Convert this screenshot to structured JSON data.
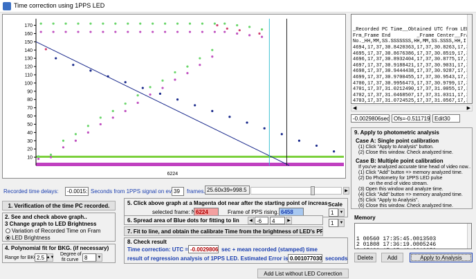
{
  "window": {
    "title": "Time correction using 1PPS LED"
  },
  "chart_data": {
    "type": "scatter",
    "yticks": [
      10,
      20,
      30,
      40,
      50,
      60,
      70,
      80,
      90,
      100,
      110,
      120,
      130,
      140,
      150,
      160,
      170
    ],
    "ylim": [
      0,
      178
    ],
    "xlabel_center": "6224",
    "series": [
      {
        "name": "",
        "color": "#6bd66b",
        "points": [
          [
            1,
            11
          ],
          [
            6,
            13
          ],
          [
            11,
            30
          ],
          [
            16,
            38
          ],
          [
            21,
            48
          ],
          [
            26,
            58
          ],
          [
            31,
            66
          ],
          [
            36,
            75
          ],
          [
            41,
            85
          ],
          [
            46,
            95
          ],
          [
            51,
            103
          ],
          [
            56,
            113
          ],
          [
            61,
            120
          ],
          [
            66,
            130
          ],
          [
            71,
            140
          ],
          [
            2,
            172
          ],
          [
            7,
            172
          ],
          [
            12,
            172
          ],
          [
            17,
            172
          ],
          [
            22,
            172
          ],
          [
            27,
            172
          ],
          [
            32,
            172
          ],
          [
            37,
            172
          ],
          [
            42,
            172
          ],
          [
            47,
            172
          ],
          [
            52,
            172
          ],
          [
            57,
            172
          ],
          [
            62,
            172
          ],
          [
            67,
            172
          ],
          [
            72,
            172
          ],
          [
            76,
            172
          ],
          [
            81,
            170
          ],
          [
            86,
            168
          ],
          [
            91,
            165
          ]
        ]
      },
      {
        "name": "",
        "color": "#c050c0",
        "points": [
          [
            1,
            8
          ],
          [
            6,
            10
          ],
          [
            11,
            22
          ],
          [
            16,
            30
          ],
          [
            21,
            40
          ],
          [
            26,
            50
          ],
          [
            31,
            58
          ],
          [
            36,
            66
          ],
          [
            41,
            76
          ],
          [
            46,
            86
          ],
          [
            51,
            94
          ],
          [
            56,
            104
          ],
          [
            61,
            112
          ],
          [
            66,
            122
          ],
          [
            71,
            132
          ],
          [
            2,
            162
          ],
          [
            7,
            162
          ],
          [
            12,
            162
          ],
          [
            17,
            162
          ],
          [
            22,
            162
          ],
          [
            27,
            162
          ],
          [
            32,
            162
          ],
          [
            37,
            162
          ],
          [
            42,
            162
          ],
          [
            47,
            162
          ],
          [
            52,
            162
          ],
          [
            57,
            162
          ],
          [
            62,
            162
          ],
          [
            67,
            162
          ],
          [
            72,
            162
          ],
          [
            76,
            162
          ],
          [
            81,
            160
          ],
          [
            86,
            158
          ],
          [
            91,
            156
          ]
        ]
      },
      {
        "name": "",
        "color": "#1a2a8c",
        "points": [
          [
            8,
            130
          ],
          [
            15,
            122
          ],
          [
            22,
            115
          ],
          [
            29,
            108
          ],
          [
            36,
            101
          ],
          [
            43,
            94
          ],
          [
            50,
            87
          ],
          [
            57,
            80
          ],
          [
            64,
            73
          ],
          [
            71,
            66
          ],
          [
            78,
            59
          ],
          [
            85,
            52
          ],
          [
            92,
            45
          ],
          [
            99,
            38
          ],
          [
            106,
            30
          ],
          [
            113,
            24
          ],
          [
            120,
            17
          ]
        ]
      },
      {
        "name": "",
        "color": "#d04070",
        "points": [
          [
            4,
            141
          ],
          [
            73,
            170
          ],
          [
            77,
            166
          ],
          [
            82,
            164
          ],
          [
            90,
            160
          ]
        ]
      }
    ]
  },
  "delays": {
    "label": "Recorded time delays:",
    "value": "-0.0015:",
    "suffix": "Seconds from 1PPS signal on every",
    "frames_value": "39",
    "frames_label": "frames.",
    "slider_text": "25.60x39=998.5"
  },
  "sidebar": {
    "verify_button": "1. Verification of the time PC recorded.",
    "step2": "2. See and check above graph..",
    "step3": "3 Change graph to LED Brightness",
    "radio1": "Variation of Recorded Time on Fram",
    "radio2": "LED Brightness",
    "step4": "4. Polynomial fit for BKG. (if necessary)",
    "range_label": "Range for BKG",
    "range_value": "2.5",
    "degree_label_1": "Degree of",
    "degree_label_2": "fit curve",
    "degree_value": "8"
  },
  "step5": {
    "text": "5. Click above graph at a Magenta dot near after the starting point of increas",
    "selected_label": "selected frame: No.",
    "selected_value": "6224",
    "pps_label": "Frame of PPS rising.: No.",
    "pps_value": "6458",
    "scale_label": "Scale",
    "scale_value_1": "1",
    "scale_value_2": "1"
  },
  "step6": {
    "text": "6. Spread area of Blue dots for fitting to lin",
    "value": "-6",
    "value2": "4"
  },
  "step7": {
    "text": "7. Fit to line, and obtain the calibrate Time from the brightness of LED's PPS"
  },
  "step8": {
    "title": "8. Check result",
    "line1_label": "Time correction:  UTC =",
    "line1_value": "-0.0029806",
    "line1_suffix": "sec +  mean recorded (stamped) time",
    "line2_label": "result of regression analysis of 1PPS LED.   Estimated Error is",
    "line2_value": "0.001077030",
    "line2_suffix": "seconds"
  },
  "add_list_button": "Add List without LED Correction",
  "right_list": {
    "lines": [
      "_Recorded PC Time__Obtained UTC from LED Si",
      "Frm_Frame End         _Frame Center__Frame End",
      "No._HH,MM,SS.SSSSSSS,HH,MM,SS.SSSS,HH,I",
      "4694,17,37,30.8420363,17,37,30.8263,17,37,30.8",
      "4695,17,37,30.8676386,17,37,30.8519,17,37,30.8",
      "4696,17,37,30.8932404,17,37,30.8775,17,37,30.8",
      "4697,17,37,30.9188421,17,37,30.9031,17,37,30.9",
      "4698,17,37,30.9444438,17,37,30.9287,17,37,30.9",
      "4699,17,37,30.9700455,17,37,30.9543,17,37,30.9",
      "4700,17,37,30.9956473,17,37,30.9799,17,37,30.9",
      "4701,17,37,31.0212490,17,37,31.0055,17,37,31.0",
      "4702,17,37,31.0468507,17,37,31.0311,17,37,31.0",
      "4703,17,37,31.0724525,17,37,31.0567,17,37,31.0",
      "4704,17,37,31.0980542,17,37,31.0823,17,37,31.0",
      "4705,17,37,31.1236559,17,37,31.1079,17,37,31.1"
    ],
    "field1": "-0.0029806sec",
    "field2": "Ofs=-0.5117193",
    "field3": "Edit30"
  },
  "instructions": {
    "title": "9. Apply to photometric analysis",
    "case_a": "Case A:   Single point calibration",
    "a1": "(1) Click \"Apply to Analysis\" button.",
    "a2": "(2) Close this window. Check analyzed time.",
    "case_b": "Case B:   Multiple point calibration",
    "b0": "If you've analyzed accurate time head of video now..",
    "b1": "(1) Click \"Add\" button => memory analyzed time.",
    "b2": "(2) Do Photometry for 1PPS LED pulse",
    "b2b": "on the end of video stream.",
    "b3": "(3) Open this window and analyze time.",
    "b4": "(4) Click \"Add\" button => memory analyzed time.",
    "b5": "(5) Click \"Apply to Analysis\".",
    "b6": "(6) Close this window. Check analyzed time."
  },
  "memory": {
    "label": "Memory",
    "lines": [
      "1 00560 17:35:45.0013503",
      "2 01808 17:36:19.0005246",
      "3 05130 17:37:42.0013259",
      "4 06458 17:38:16.0005117"
    ],
    "delete": "Delete",
    "add": "Add",
    "apply": "Apply to Analysis"
  }
}
